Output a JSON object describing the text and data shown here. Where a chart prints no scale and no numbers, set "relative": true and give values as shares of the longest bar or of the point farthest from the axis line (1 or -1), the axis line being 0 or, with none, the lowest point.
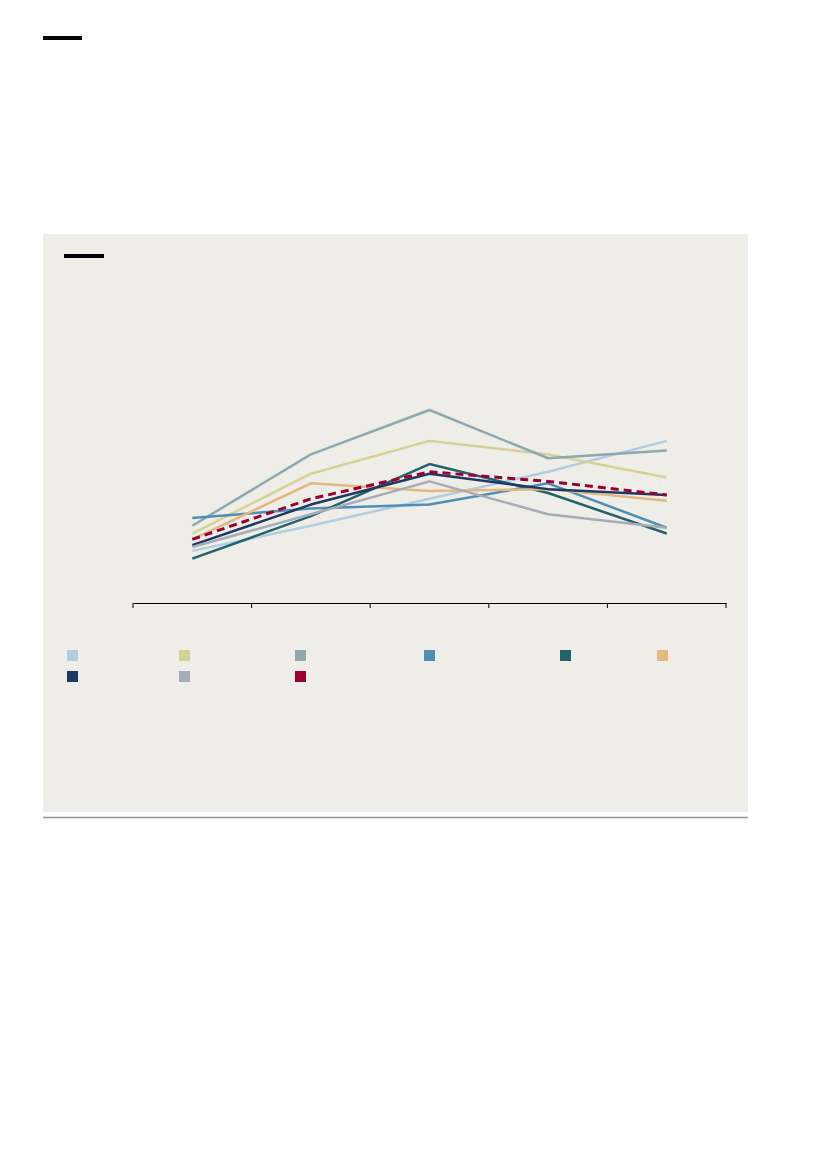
{
  "chart_data": {
    "type": "line",
    "relative": true,
    "categories": [
      null,
      null,
      null,
      null,
      null
    ],
    "series": [
      {
        "color": "#b3cde0",
        "values": [
          0.27,
          0.4,
          0.54,
          0.68,
          0.84
        ]
      },
      {
        "color": "#d8d196",
        "values": [
          0.36,
          0.67,
          0.84,
          0.77,
          0.65
        ]
      },
      {
        "color": "#8ea8b0",
        "values": [
          0.4,
          0.77,
          1,
          0.75,
          0.79
        ]
      },
      {
        "color": "#4f8fb5",
        "values": [
          0.44,
          0.49,
          0.51,
          0.62,
          0.39
        ]
      },
      {
        "color": "#25636b",
        "values": [
          0.23,
          0.45,
          0.72,
          0.57,
          0.36
        ]
      },
      {
        "color": "#e3b882",
        "values": [
          0.33,
          0.62,
          0.58,
          0.59,
          0.53
        ]
      },
      {
        "color": "#1f3864",
        "values": [
          0.3,
          0.51,
          0.67,
          0.59,
          0.56
        ]
      },
      {
        "color": "#a6adb8",
        "values": [
          0.29,
          0.46,
          0.63,
          0.46,
          0.39
        ]
      },
      {
        "color": "#9a0033",
        "values": [
          0.33,
          0.54,
          0.68,
          0.63,
          0.56
        ],
        "line_style": "dashed"
      }
    ]
  }
}
